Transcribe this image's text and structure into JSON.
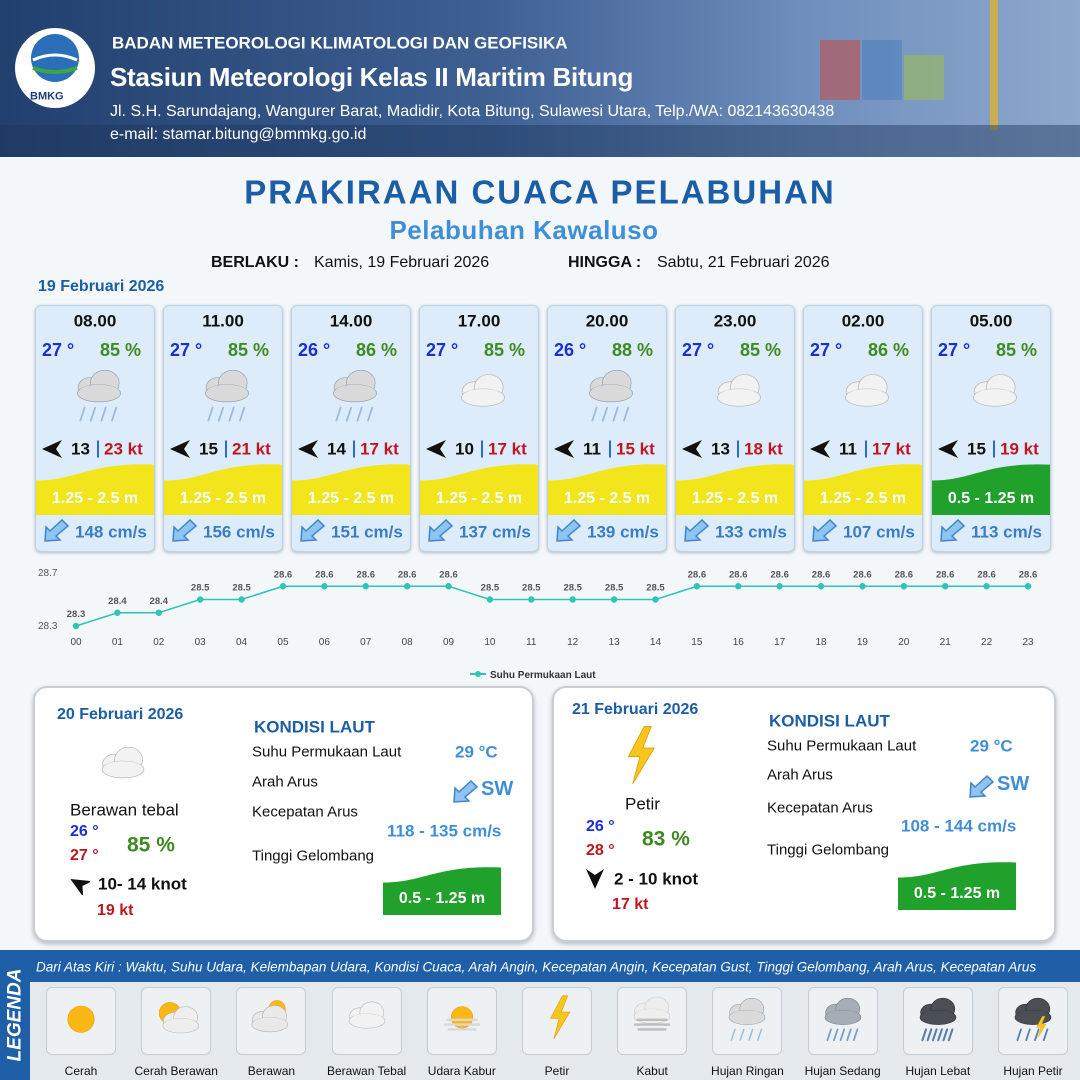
{
  "header": {
    "logo": "BMKG",
    "organization": "BADAN METEOROLOGI KLIMATOLOGI DAN GEOFISIKA",
    "station": "Stasiun Meteorologi Kelas II Maritim Bitung",
    "address": "Jl. S.H. Sarundajang, Wangurer Barat, Madidir, Kota Bitung, Sulawesi Utara, Telp./WA: 082143630438",
    "email": "e-mail: stamar.bitung@bmmkg.go.id"
  },
  "title": "PRAKIRAAN CUACA PELABUHAN",
  "subtitle": "Pelabuhan Kawaluso",
  "validity": {
    "from_label": "BERLAKU :",
    "from": "Kamis, 19 Februari 2026",
    "to_label": "HINGGA :",
    "to": "Sabtu, 21 Februari 2026"
  },
  "day1": {
    "date": "19 Februari 2026",
    "slots": [
      {
        "time": "08.00",
        "temp": "27 °",
        "humidity": "85 %",
        "wind": "13",
        "gust": "23 kt",
        "wave": "1.25 - 2.5 m",
        "current": "148 cm/s"
      },
      {
        "time": "11.00",
        "temp": "27 °",
        "humidity": "85 %",
        "wind": "15",
        "gust": "21 kt",
        "wave": "1.25 - 2.5 m",
        "current": "156 cm/s"
      },
      {
        "time": "14.00",
        "temp": "26 °",
        "humidity": "86 %",
        "wind": "14",
        "gust": "17 kt",
        "wave": "1.25 - 2.5 m",
        "current": "151 cm/s"
      },
      {
        "time": "17.00",
        "temp": "27 °",
        "humidity": "85 %",
        "wind": "10",
        "gust": "17 kt",
        "wave": "1.25 - 2.5 m",
        "current": "137 cm/s"
      },
      {
        "time": "20.00",
        "temp": "26 °",
        "humidity": "88 %",
        "wind": "11",
        "gust": "15 kt",
        "wave": "1.25 - 2.5 m",
        "current": "139 cm/s"
      },
      {
        "time": "23.00",
        "temp": "27 °",
        "humidity": "85 %",
        "wind": "13",
        "gust": "18 kt",
        "wave": "1.25 - 2.5 m",
        "current": "133 cm/s"
      },
      {
        "time": "02.00",
        "temp": "27 °",
        "humidity": "86 %",
        "wind": "11",
        "gust": "17 kt",
        "wave": "1.25 - 2.5 m",
        "current": "107 cm/s"
      },
      {
        "time": "05.00",
        "temp": "27 °",
        "humidity": "85 %",
        "wind": "15",
        "gust": "19 kt",
        "wave": "0.5 - 1.25 m",
        "current": "113 cm/s"
      }
    ]
  },
  "chart_data": {
    "type": "line",
    "categories": [
      "00",
      "01",
      "02",
      "03",
      "04",
      "05",
      "06",
      "07",
      "08",
      "09",
      "10",
      "11",
      "12",
      "13",
      "14",
      "15",
      "16",
      "17",
      "18",
      "19",
      "20",
      "21",
      "22",
      "23"
    ],
    "series": [
      {
        "name": "Suhu Permukaan Laut",
        "color": "#2ec4b6",
        "values": [
          28.3,
          28.4,
          28.4,
          28.5,
          28.5,
          28.6,
          28.6,
          28.6,
          28.6,
          28.6,
          28.5,
          28.5,
          28.5,
          28.5,
          28.5,
          28.6,
          28.6,
          28.6,
          28.6,
          28.6,
          28.6,
          28.6,
          28.6,
          28.6
        ]
      }
    ],
    "ylim": [
      28.3,
      28.7
    ],
    "yticks": [
      28.3,
      28.7
    ],
    "legend": "bottom"
  },
  "day2": {
    "date": "20 Februari 2026",
    "condition": "Berawan tebal",
    "temp_min": "26 °",
    "temp_max": "27 °",
    "humidity": "85 %",
    "wind": "10- 14 knot",
    "gust": "19 kt",
    "sea_title": "KONDISI LAUT",
    "sst_label": "Suhu Permukaan Laut",
    "sst": "29 °C",
    "current_dir_label": "Arah Arus",
    "current_dir": "SW",
    "current_speed_label": "Kecepatan Arus",
    "current_speed": "118 - 135 cm/s",
    "wave_label": "Tinggi Gelombang",
    "wave": "0.5 - 1.25 m"
  },
  "day3": {
    "date": "21 Februari 2026",
    "condition": "Petir",
    "temp_min": "26 °",
    "temp_max": "28 °",
    "humidity": "83 %",
    "wind": "2 - 10 knot",
    "gust": "17 kt",
    "sea_title": "KONDISI LAUT",
    "sst_label": "Suhu Permukaan Laut",
    "sst": "29 °C",
    "current_dir_label": "Arah Arus",
    "current_dir": "SW",
    "current_speed_label": "Kecepatan Arus",
    "current_speed": "108 - 144 cm/s",
    "wave_label": "Tinggi Gelombang",
    "wave": "0.5 - 1.25 m"
  },
  "legend": {
    "title": "LEGENDA",
    "description": "Dari Atas Kiri : Waktu, Suhu Udara, Kelembapan Udara, Kondisi Cuaca, Arah Angin, Kecepatan Angin, Kecepatan Gust, Tinggi Gelombang, Arah Arus, Kecepatan Arus",
    "items": [
      "Cerah",
      "Cerah Berawan",
      "Berawan",
      "Berawan Tebal",
      "Udara Kabur",
      "Petir",
      "Kabut",
      "Hujan Ringan",
      "Hujan Sedang",
      "Hujan Lebat",
      "Hujan Petir"
    ]
  }
}
